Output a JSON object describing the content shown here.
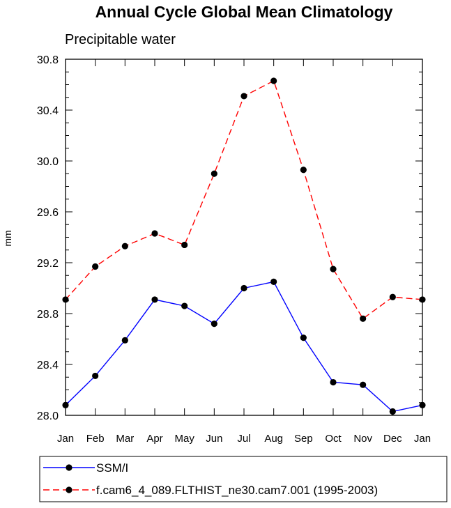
{
  "chart_data": {
    "type": "line",
    "title": "Annual Cycle Global Mean Climatology",
    "subtitle": "Precipitable water",
    "ylabel": "mm",
    "xlabel": "",
    "categories": [
      "Jan",
      "Feb",
      "Mar",
      "Apr",
      "May",
      "Jun",
      "Jul",
      "Aug",
      "Sep",
      "Oct",
      "Nov",
      "Dec",
      "Jan"
    ],
    "ylim": [
      28.0,
      30.8
    ],
    "yticks": [
      "28.0",
      "28.4",
      "28.8",
      "29.2",
      "29.6",
      "30.0",
      "30.4",
      "30.8"
    ],
    "y_minor_step": 0.1,
    "grid": false,
    "legend_position": "bottom",
    "series": [
      {
        "name": "SSM/I",
        "color": "#0000ff",
        "dash": "solid",
        "marker": "filled-circle",
        "values": [
          28.08,
          28.31,
          28.59,
          28.91,
          28.86,
          28.72,
          29.0,
          29.05,
          28.61,
          28.26,
          28.24,
          28.03,
          28.08
        ]
      },
      {
        "name": "f.cam6_4_089.FLTHIST_ne30.cam7.001 (1995-2003)",
        "color": "#ff0000",
        "dash": "dashed",
        "marker": "filled-circle",
        "values": [
          28.91,
          29.17,
          29.33,
          29.43,
          29.34,
          29.9,
          30.51,
          30.63,
          29.93,
          29.15,
          28.76,
          28.93,
          28.91
        ]
      }
    ]
  }
}
